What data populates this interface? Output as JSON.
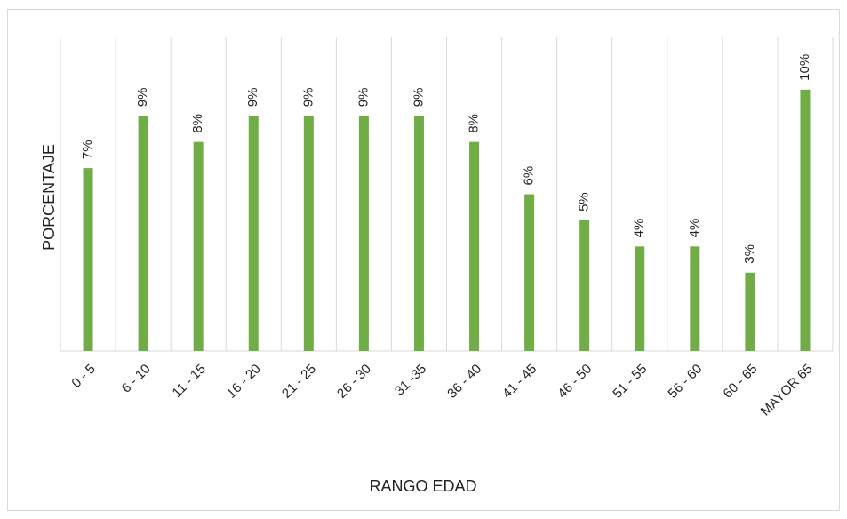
{
  "chart_data": {
    "type": "bar",
    "categories": [
      "0 - 5",
      "6 - 10",
      "11 - 15",
      "16 - 20",
      "21 - 25",
      "26 - 30",
      "31 -35",
      "36 - 40",
      "41 - 45",
      "46 - 50",
      "51 - 55",
      "56 - 60",
      "60 - 65",
      "MAYOR 65"
    ],
    "values": [
      7,
      9,
      8,
      9,
      9,
      9,
      9,
      8,
      6,
      5,
      4,
      4,
      3,
      10
    ],
    "value_labels": [
      "7%",
      "9%",
      "8%",
      "9%",
      "9%",
      "9%",
      "9%",
      "8%",
      "6%",
      "5%",
      "4%",
      "4%",
      "3%",
      "10%"
    ],
    "color": "#70ad47",
    "ylim": [
      0,
      12
    ],
    "xlabel": "RANGO EDAD",
    "ylabel": "PORCENTAJE",
    "grid": true
  }
}
